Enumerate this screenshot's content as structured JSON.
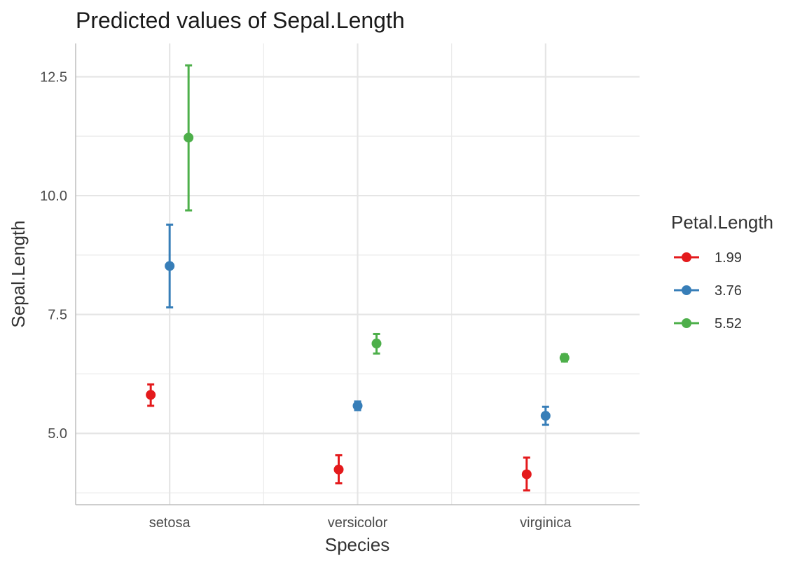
{
  "chart_data": {
    "type": "scatter",
    "title": "Predicted values of Sepal.Length",
    "xlabel": "Species",
    "ylabel": "Sepal.Length",
    "categories": [
      "setosa",
      "versicolor",
      "virginica"
    ],
    "ylim": [
      3.5,
      13.2
    ],
    "y_ticks": [
      5.0,
      7.5,
      10.0,
      12.5
    ],
    "y_tick_labels": [
      "5.0",
      "7.5",
      "10.0",
      "12.5"
    ],
    "grid": true,
    "legend": {
      "title": "Petal.Length",
      "position": "right"
    },
    "error_bars": true,
    "series": [
      {
        "name": "1.99",
        "color": "#E41A1C",
        "values": [
          5.81,
          4.24,
          4.14
        ],
        "lower": [
          5.58,
          3.95,
          3.8
        ],
        "upper": [
          6.03,
          4.54,
          4.49
        ]
      },
      {
        "name": "3.76",
        "color": "#377EB8",
        "values": [
          8.52,
          5.58,
          5.37
        ],
        "lower": [
          7.65,
          5.49,
          5.18
        ],
        "upper": [
          9.39,
          5.67,
          5.56
        ]
      },
      {
        "name": "5.52",
        "color": "#4DAF4A",
        "values": [
          11.22,
          6.89,
          6.59
        ],
        "lower": [
          9.69,
          6.68,
          6.51
        ],
        "upper": [
          12.74,
          7.09,
          6.66
        ]
      }
    ]
  }
}
